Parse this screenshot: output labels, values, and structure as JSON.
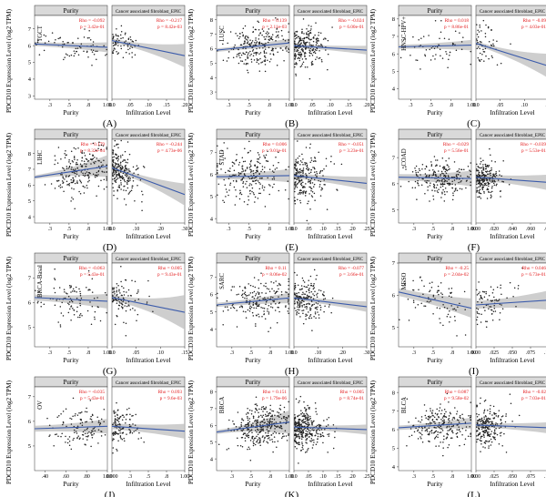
{
  "figure": {
    "strip_labels": [
      "Purity",
      "Cancer associated fibroblast_EPIC"
    ],
    "ylabel": "PDCD10 Expression Level (log2 TPM)",
    "xlabel_left": "Purity",
    "xlabel_right": "Infiltration Level",
    "colors": {
      "strip": "#d9d9d9",
      "points": "#222222",
      "line": "#3b5bab",
      "ci": "#bdbdbd",
      "stats": "#e31a1c"
    }
  },
  "chart_data": [
    {
      "type": "scatter",
      "panel_label": "(A)",
      "cancer": "TGCT",
      "ylim": [
        2.8,
        7.8
      ],
      "yticks": [
        3,
        4,
        5,
        6,
        7
      ],
      "purity": {
        "rho": "Rho = -0.092",
        "p": "p = 3.42e-01",
        "xlim": [
          0.05,
          1.0
        ],
        "xticks": [
          0.25,
          0.5,
          0.75,
          1.0
        ],
        "fit": [
          6.1,
          5.9
        ],
        "center": [
          0.55,
          6.0
        ],
        "spread": [
          0.25,
          0.45
        ],
        "n": 70
      },
      "infiltration": {
        "rho": "Rho = -0.217",
        "p": "p = 8.42e-03",
        "xlim": [
          0,
          0.2
        ],
        "xticks": [
          0.0,
          0.05,
          0.1,
          0.15,
          0.2
        ],
        "fit": [
          6.3,
          5.4
        ],
        "center": [
          0.03,
          6.0
        ],
        "spread": [
          0.03,
          0.45
        ],
        "n": 70
      }
    },
    {
      "type": "scatter",
      "panel_label": "(B)",
      "cancer": "LUSC",
      "ylim": [
        2.5,
        8.3
      ],
      "yticks": [
        3,
        4,
        5,
        6,
        7,
        8
      ],
      "purity": {
        "rho": "Rho = 0.139",
        "p": "p = 2.11e-03",
        "xlim": [
          0.1,
          1.0
        ],
        "xticks": [
          0.25,
          0.5,
          0.75,
          1.0
        ],
        "fit": [
          5.9,
          6.4
        ],
        "center": [
          0.6,
          6.1
        ],
        "spread": [
          0.2,
          0.7
        ],
        "n": 240
      },
      "infiltration": {
        "rho": "Rho = -0.024",
        "p": "p = 6.00e-01",
        "xlim": [
          0,
          0.2
        ],
        "xticks": [
          0.0,
          0.05,
          0.1,
          0.15,
          0.2
        ],
        "fit": [
          6.2,
          5.9
        ],
        "center": [
          0.04,
          6.1
        ],
        "spread": [
          0.03,
          0.7
        ],
        "n": 240
      }
    },
    {
      "type": "scatter",
      "panel_label": "(C)",
      "cancer": "HNSC-HPV+",
      "ylim": [
        3.4,
        8.2
      ],
      "yticks": [
        4,
        5,
        6,
        7,
        8
      ],
      "purity": {
        "rho": "Rho = 0.018",
        "p": "p = 8.86e-01",
        "xlim": [
          0.1,
          1.0
        ],
        "xticks": [
          0.25,
          0.5,
          0.75,
          1.0
        ],
        "fit": [
          6.4,
          6.5
        ],
        "center": [
          0.55,
          6.5
        ],
        "spread": [
          0.2,
          0.6
        ],
        "n": 60
      },
      "infiltration": {
        "rho": "Rho = -0.09",
        "p": "p = 4.03e-01",
        "xlim": [
          0,
          0.15
        ],
        "xticks": [
          0.0,
          0.05,
          0.1,
          0.15
        ],
        "fit": [
          6.6,
          5.3
        ],
        "center": [
          0.02,
          6.5
        ],
        "spread": [
          0.02,
          0.6
        ],
        "n": 60
      }
    },
    {
      "type": "scatter",
      "panel_label": "(D)",
      "cancer": "LIHC",
      "ylim": [
        3.6,
        8.9
      ],
      "yticks": [
        4,
        5,
        6,
        7,
        8
      ],
      "purity": {
        "rho": "Rho = 0.179",
        "p": "p = 8.32e-04",
        "xlim": [
          0.05,
          1.0
        ],
        "xticks": [
          0.25,
          0.5,
          0.75,
          1.0
        ],
        "fit": [
          6.5,
          7.2
        ],
        "center": [
          0.65,
          6.8
        ],
        "spread": [
          0.2,
          0.75
        ],
        "n": 220
      },
      "infiltration": {
        "rho": "Rho = -0.244",
        "p": "p = 4.73e-06",
        "xlim": [
          0,
          0.3
        ],
        "xticks": [
          0.0,
          0.1,
          0.2,
          0.3
        ],
        "fit": [
          7.1,
          5.4
        ],
        "center": [
          0.04,
          6.8
        ],
        "spread": [
          0.04,
          0.75
        ],
        "n": 220
      }
    },
    {
      "type": "scatter",
      "panel_label": "(E)",
      "cancer": "STAD",
      "ylim": [
        3.8,
        7.6
      ],
      "yticks": [
        4,
        5,
        6,
        7
      ],
      "purity": {
        "rho": "Rho = 0.006",
        "p": "p = 9.01e-01",
        "xlim": [
          0.1,
          1.0
        ],
        "xticks": [
          0.25,
          0.5,
          0.75,
          1.0
        ],
        "fit": [
          5.9,
          5.95
        ],
        "center": [
          0.5,
          5.9
        ],
        "spread": [
          0.2,
          0.6
        ],
        "n": 220
      },
      "infiltration": {
        "rho": "Rho = -0.051",
        "p": "p = 3.23e-01",
        "xlim": [
          0,
          0.25
        ],
        "xticks": [
          0.0,
          0.05,
          0.1,
          0.15,
          0.2,
          0.25
        ],
        "fit": [
          5.95,
          5.6
        ],
        "center": [
          0.04,
          5.9
        ],
        "spread": [
          0.04,
          0.6
        ],
        "n": 220
      }
    },
    {
      "type": "scatter",
      "panel_label": "(F)",
      "cancer": "COAD",
      "ylim": [
        4.5,
        7.7
      ],
      "yticks": [
        5,
        6,
        7
      ],
      "purity": {
        "rho": "Rho = -0.029",
        "p": "p = 5.56e-01",
        "xlim": [
          0.05,
          1.0
        ],
        "xticks": [
          0.25,
          0.5,
          0.75,
          1.0
        ],
        "fit": [
          6.25,
          6.2
        ],
        "center": [
          0.6,
          6.2
        ],
        "spread": [
          0.2,
          0.35
        ],
        "n": 230
      },
      "infiltration": {
        "rho": "Rho = -0.039",
        "p": "p = 5.53e-01",
        "xlim": [
          0,
          0.08
        ],
        "xticks": [
          0.0,
          0.02,
          0.04,
          0.06,
          0.08
        ],
        "fit": [
          6.25,
          6.05
        ],
        "center": [
          0.012,
          6.2
        ],
        "spread": [
          0.01,
          0.35
        ],
        "n": 230
      }
    },
    {
      "type": "scatter",
      "panel_label": "(G)",
      "cancer": "BRCA-Basal",
      "ylim": [
        4.2,
        7.6
      ],
      "yticks": [
        5,
        6,
        7
      ],
      "purity": {
        "rho": "Rho = -0.063",
        "p": "p = 5.43e-01",
        "xlim": [
          0.05,
          1.0
        ],
        "xticks": [
          0.25,
          0.5,
          0.75,
          1.0
        ],
        "fit": [
          6.2,
          6.05
        ],
        "center": [
          0.55,
          6.1
        ],
        "spread": [
          0.2,
          0.45
        ],
        "n": 100
      },
      "infiltration": {
        "rho": "Rho = 0.005",
        "p": "p = 9.43e-01",
        "xlim": [
          0,
          0.15
        ],
        "xticks": [
          0.0,
          0.05,
          0.1,
          0.15
        ],
        "fit": [
          6.2,
          5.6
        ],
        "center": [
          0.02,
          6.1
        ],
        "spread": [
          0.02,
          0.45
        ],
        "n": 100
      }
    },
    {
      "type": "scatter",
      "panel_label": "(H)",
      "cancer": "SARC",
      "ylim": [
        3.0,
        7.8
      ],
      "yticks": [
        4,
        5,
        6,
        7
      ],
      "purity": {
        "rho": "Rho = 0.11",
        "p": "p = 8.06e-02",
        "xlim": [
          0.05,
          1.0
        ],
        "xticks": [
          0.25,
          0.5,
          0.75,
          1.0
        ],
        "fit": [
          5.4,
          5.8
        ],
        "center": [
          0.6,
          5.6
        ],
        "spread": [
          0.22,
          0.6
        ],
        "n": 200
      },
      "infiltration": {
        "rho": "Rho = -0.077",
        "p": "p = 3.66e-01",
        "xlim": [
          0,
          0.3
        ],
        "xticks": [
          0.0,
          0.1,
          0.2,
          0.3
        ],
        "fit": [
          5.8,
          5.3
        ],
        "center": [
          0.05,
          5.6
        ],
        "spread": [
          0.05,
          0.6
        ],
        "n": 200
      }
    },
    {
      "type": "scatter",
      "panel_label": "(I)",
      "cancer": "MESO",
      "ylim": [
        4.4,
        7.0
      ],
      "yticks": [
        5,
        6,
        7
      ],
      "purity": {
        "rho": "Rho = -0.25",
        "p": "p = 2.04e-02",
        "xlim": [
          0.05,
          1.0
        ],
        "xticks": [
          0.25,
          0.5,
          0.75,
          1.0
        ],
        "fit": [
          6.1,
          5.6
        ],
        "center": [
          0.55,
          5.8
        ],
        "spread": [
          0.22,
          0.35
        ],
        "n": 80
      },
      "infiltration": {
        "rho": "Rho = 0.046",
        "p": "p = 6.73e-01",
        "xlim": [
          0,
          0.1
        ],
        "xticks": [
          0.0,
          0.025,
          0.05,
          0.075,
          0.1
        ],
        "fit": [
          5.7,
          5.85
        ],
        "center": [
          0.03,
          5.8
        ],
        "spread": [
          0.02,
          0.35
        ],
        "n": 80
      }
    },
    {
      "type": "scatter",
      "panel_label": "(J)",
      "cancer": "OV",
      "ylim": [
        4.0,
        7.4
      ],
      "yticks": [
        5,
        6,
        7
      ],
      "purity": {
        "rho": "Rho = -0.035",
        "p": "p = 5.43e-01",
        "xlim": [
          0.3,
          1.0
        ],
        "xticks": [
          0.4,
          0.6,
          0.8,
          1.0
        ],
        "fit": [
          5.7,
          5.8
        ],
        "center": [
          0.75,
          5.7
        ],
        "spread": [
          0.12,
          0.4
        ],
        "n": 120
      },
      "infiltration": {
        "rho": "Rho = 0.093",
        "p": "p = 9.6e-03",
        "xlim": [
          0,
          1.0
        ],
        "xticks": [
          0.0,
          0.25,
          0.5,
          0.75,
          1.0
        ],
        "fit": [
          5.8,
          5.6
        ],
        "center": [
          0.15,
          5.7
        ],
        "spread": [
          0.12,
          0.4
        ],
        "n": 120
      }
    },
    {
      "type": "scatter",
      "panel_label": "(K)",
      "cancer": "BRCA",
      "ylim": [
        3.3,
        8.3
      ],
      "yticks": [
        4,
        5,
        6,
        7,
        8
      ],
      "purity": {
        "rho": "Rho = 0.151",
        "p": "p = 1.79e-06",
        "xlim": [
          0.05,
          1.0
        ],
        "xticks": [
          0.25,
          0.5,
          0.75,
          1.0
        ],
        "fit": [
          5.6,
          6.2
        ],
        "center": [
          0.65,
          5.9
        ],
        "spread": [
          0.18,
          0.6
        ],
        "n": 330
      },
      "infiltration": {
        "rho": "Rho = 0.005",
        "p": "p = 8.74e-01",
        "xlim": [
          0,
          0.25
        ],
        "xticks": [
          0.0,
          0.05,
          0.1,
          0.15,
          0.2,
          0.25
        ],
        "fit": [
          5.9,
          5.75
        ],
        "center": [
          0.04,
          5.9
        ],
        "spread": [
          0.04,
          0.6
        ],
        "n": 330
      }
    },
    {
      "type": "scatter",
      "panel_label": "(L)",
      "cancer": "BLCA",
      "ylim": [
        3.8,
        8.3
      ],
      "yticks": [
        4,
        5,
        6,
        7,
        8
      ],
      "purity": {
        "rho": "Rho = 0.087",
        "p": "p = 9.58e-02",
        "xlim": [
          0.05,
          1.0
        ],
        "xticks": [
          0.25,
          0.5,
          0.75,
          1.0
        ],
        "fit": [
          6.1,
          6.35
        ],
        "center": [
          0.6,
          6.2
        ],
        "spread": [
          0.2,
          0.55
        ],
        "n": 230
      },
      "infiltration": {
        "rho": "Rho = -0.02",
        "p": "p = 7.03e-01",
        "xlim": [
          0,
          0.1
        ],
        "xticks": [
          0.0,
          0.025,
          0.05,
          0.075,
          0.1
        ],
        "fit": [
          6.25,
          6.1
        ],
        "center": [
          0.015,
          6.2
        ],
        "spread": [
          0.015,
          0.55
        ],
        "n": 230
      }
    }
  ]
}
